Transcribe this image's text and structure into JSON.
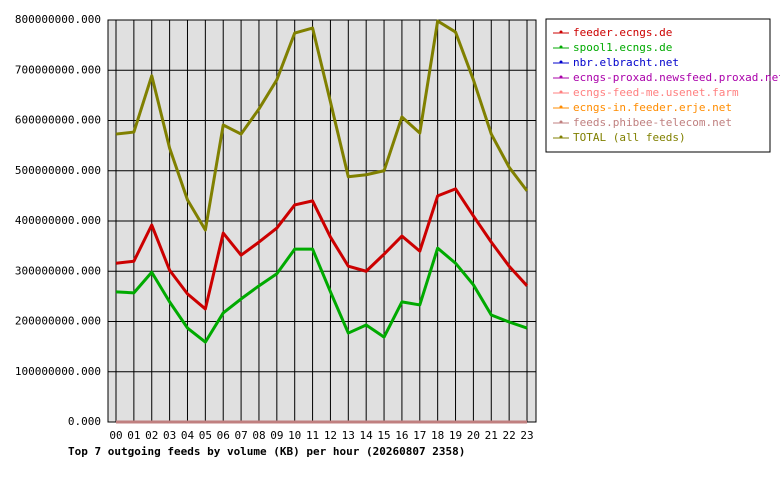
{
  "chart_data": {
    "type": "line",
    "title": "Top 7 outgoing feeds by volume (KB) per hour (20260807 2358)",
    "categories": [
      "00",
      "01",
      "02",
      "03",
      "04",
      "05",
      "06",
      "07",
      "08",
      "09",
      "10",
      "11",
      "12",
      "13",
      "14",
      "15",
      "16",
      "17",
      "18",
      "19",
      "20",
      "21",
      "22",
      "23"
    ],
    "series": [
      {
        "name": "feeder.ecngs.de",
        "color": "#cc0000",
        "values": [
          316000000,
          320000000,
          392000000,
          302000000,
          255000000,
          225000000,
          376000000,
          332000000,
          358000000,
          386000000,
          432000000,
          440000000,
          368000000,
          310000000,
          300000000,
          334000000,
          370000000,
          340000000,
          450000000,
          464000000,
          410000000,
          358000000,
          310000000,
          271000000
        ]
      },
      {
        "name": "spool1.ecngs.de",
        "color": "#00aa00",
        "values": [
          259000000,
          257000000,
          298000000,
          239000000,
          187000000,
          159000000,
          217000000,
          245000000,
          271000000,
          295000000,
          344000000,
          344000000,
          259000000,
          177000000,
          193000000,
          169000000,
          239000000,
          233000000,
          346000000,
          316000000,
          273000000,
          213000000,
          199000000,
          187000000
        ]
      },
      {
        "name": "nbr.elbracht.net",
        "color": "#0000cc",
        "values": [
          0,
          0,
          0,
          0,
          0,
          0,
          0,
          0,
          0,
          0,
          0,
          0,
          0,
          0,
          0,
          0,
          0,
          0,
          0,
          0,
          0,
          0,
          0,
          0
        ]
      },
      {
        "name": "ecngs-proxad.newsfeed.proxad.net",
        "color": "#aa00aa",
        "values": [
          0,
          0,
          0,
          0,
          0,
          0,
          0,
          0,
          0,
          0,
          0,
          0,
          0,
          0,
          0,
          0,
          0,
          0,
          0,
          0,
          0,
          0,
          0,
          0
        ]
      },
      {
        "name": "ecngs-feed-me.usenet.farm",
        "color": "#ff8080",
        "values": [
          0,
          0,
          0,
          0,
          0,
          0,
          0,
          0,
          0,
          0,
          0,
          0,
          0,
          0,
          0,
          0,
          0,
          0,
          0,
          0,
          0,
          0,
          0,
          0
        ]
      },
      {
        "name": "ecngs-in.feeder.erje.net",
        "color": "#ff8c00",
        "values": [
          0,
          0,
          0,
          0,
          0,
          0,
          0,
          0,
          0,
          0,
          0,
          0,
          0,
          0,
          0,
          0,
          0,
          0,
          0,
          0,
          0,
          0,
          0,
          0
        ]
      },
      {
        "name": "feeds.phibee-telecom.net",
        "color": "#c08080",
        "values": [
          0,
          0,
          0,
          0,
          0,
          0,
          0,
          0,
          0,
          0,
          0,
          0,
          0,
          0,
          0,
          0,
          0,
          0,
          0,
          0,
          0,
          0,
          0,
          0
        ]
      },
      {
        "name": "TOTAL (all feeds)",
        "color": "#808000",
        "values": [
          573000000,
          577000000,
          689000000,
          545000000,
          442000000,
          382000000,
          591000000,
          573000000,
          623000000,
          681000000,
          774000000,
          784000000,
          637000000,
          488000000,
          492000000,
          500000000,
          607000000,
          575000000,
          798000000,
          776000000,
          681000000,
          573000000,
          507000000,
          460000000
        ]
      }
    ],
    "ylim": [
      0,
      800000000
    ],
    "yticks": [
      {
        "value": 0,
        "label": "0.000"
      },
      {
        "value": 100000000,
        "label": "100000000.000"
      },
      {
        "value": 200000000,
        "label": "200000000.000"
      },
      {
        "value": 300000000,
        "label": "300000000.000"
      },
      {
        "value": 400000000,
        "label": "400000000.000"
      },
      {
        "value": 500000000,
        "label": "500000000.000"
      },
      {
        "value": 600000000,
        "label": "600000000.000"
      },
      {
        "value": 700000000,
        "label": "700000000.000"
      },
      {
        "value": 800000000,
        "label": "800000000.000"
      }
    ],
    "grid": true,
    "legend": "right"
  }
}
